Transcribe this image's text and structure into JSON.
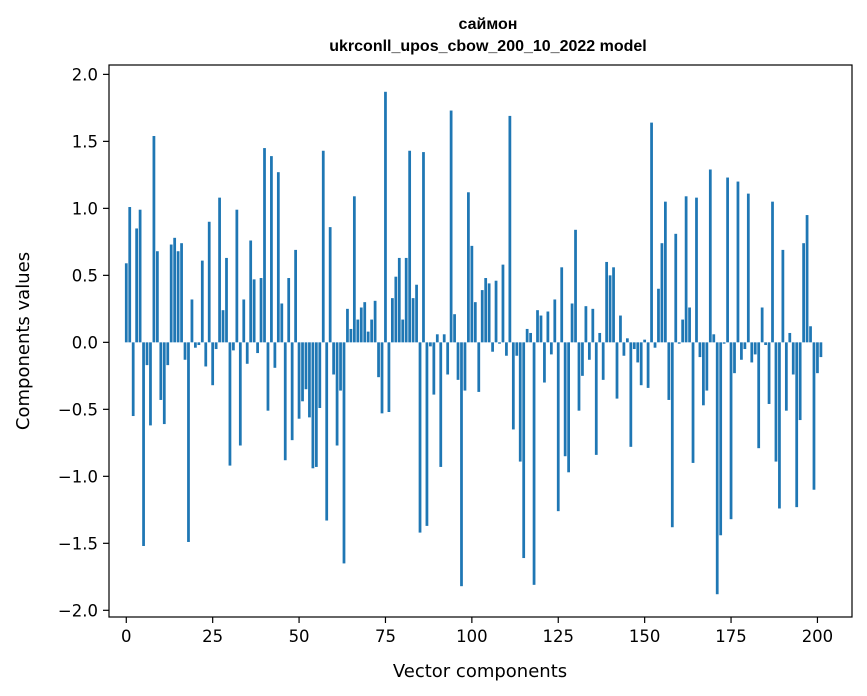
{
  "chart_data": {
    "type": "bar",
    "title": "саймон",
    "subtitle": "ukrconll_upos_cbow_200_10_2022 model",
    "xlabel": "Vector components",
    "ylabel": "Components values",
    "xlim": [
      -5,
      210
    ],
    "ylim": [
      -2.05,
      2.07
    ],
    "x_ticks": [
      0,
      25,
      50,
      75,
      100,
      125,
      150,
      175,
      200
    ],
    "y_ticks": [
      -2.0,
      -1.5,
      -1.0,
      -0.5,
      0.0,
      0.5,
      1.0,
      1.5,
      2.0
    ],
    "x_tick_labels": [
      "0",
      "25",
      "50",
      "75",
      "100",
      "125",
      "150",
      "175",
      "200"
    ],
    "y_tick_labels": [
      "−2.0",
      "−1.5",
      "−1.0",
      "−0.5",
      "0.0",
      "0.5",
      "1.0",
      "1.5",
      "2.0"
    ],
    "bar_color": "#1f77b4",
    "grid": false,
    "legend": "none",
    "values": [
      0.59,
      1.01,
      -0.55,
      0.85,
      0.99,
      -1.52,
      -0.17,
      -0.62,
      1.54,
      0.68,
      -0.43,
      -0.61,
      -0.17,
      0.73,
      0.78,
      0.68,
      0.74,
      -0.13,
      -1.49,
      0.32,
      -0.04,
      -0.02,
      0.61,
      -0.18,
      0.9,
      -0.32,
      -0.05,
      1.08,
      0.24,
      0.63,
      -0.92,
      -0.06,
      0.99,
      -0.77,
      0.32,
      -0.16,
      0.76,
      0.47,
      -0.08,
      0.48,
      1.45,
      -0.51,
      1.39,
      -0.19,
      1.27,
      0.29,
      -0.88,
      0.48,
      -0.73,
      0.69,
      -0.57,
      -0.44,
      -0.35,
      -0.56,
      -0.94,
      -0.93,
      -0.49,
      1.43,
      -1.33,
      0.86,
      -0.24,
      -0.77,
      -0.36,
      -1.65,
      0.25,
      0.1,
      1.09,
      0.17,
      0.26,
      0.3,
      0.08,
      0.17,
      0.31,
      -0.26,
      -0.53,
      1.87,
      -0.52,
      0.33,
      0.49,
      0.63,
      0.17,
      0.63,
      1.43,
      0.33,
      0.43,
      -1.42,
      1.42,
      -1.37,
      -0.03,
      -0.39,
      0.06,
      -0.93,
      0.06,
      -0.24,
      1.73,
      0.21,
      -0.28,
      -1.82,
      -0.36,
      1.12,
      0.72,
      0.3,
      -0.37,
      0.39,
      0.48,
      0.44,
      -0.07,
      0.46,
      -0.01,
      0.58,
      -0.1,
      1.69,
      -0.65,
      -0.1,
      -0.89,
      -1.61,
      0.1,
      0.07,
      -1.81,
      0.24,
      0.2,
      -0.3,
      0.23,
      -0.09,
      0.32,
      -1.26,
      0.56,
      -0.85,
      -0.97,
      0.29,
      0.84,
      -0.51,
      -0.25,
      0.27,
      -0.13,
      0.25,
      -0.84,
      0.07,
      -0.28,
      0.6,
      0.5,
      0.56,
      -0.42,
      0.2,
      -0.1,
      0.03,
      -0.78,
      -0.05,
      -0.15,
      -0.32,
      0.02,
      -0.34,
      1.64,
      -0.04,
      0.4,
      0.74,
      1.05,
      -0.43,
      -1.38,
      0.81,
      -0.01,
      0.17,
      1.09,
      0.26,
      -0.9,
      1.08,
      -0.11,
      -0.47,
      -0.36,
      1.29,
      0.06,
      -1.88,
      -1.44,
      -0.01,
      1.23,
      -1.32,
      -0.23,
      1.2,
      -0.13,
      -0.05,
      1.11,
      -0.15,
      -0.09,
      -0.79,
      0.26,
      -0.02,
      -0.46,
      1.05,
      -0.89,
      -1.24,
      0.69,
      -0.51,
      0.07,
      -0.24,
      -1.23,
      -0.58,
      0.74,
      0.95,
      0.12,
      -1.1,
      -0.23,
      -0.11
    ]
  }
}
